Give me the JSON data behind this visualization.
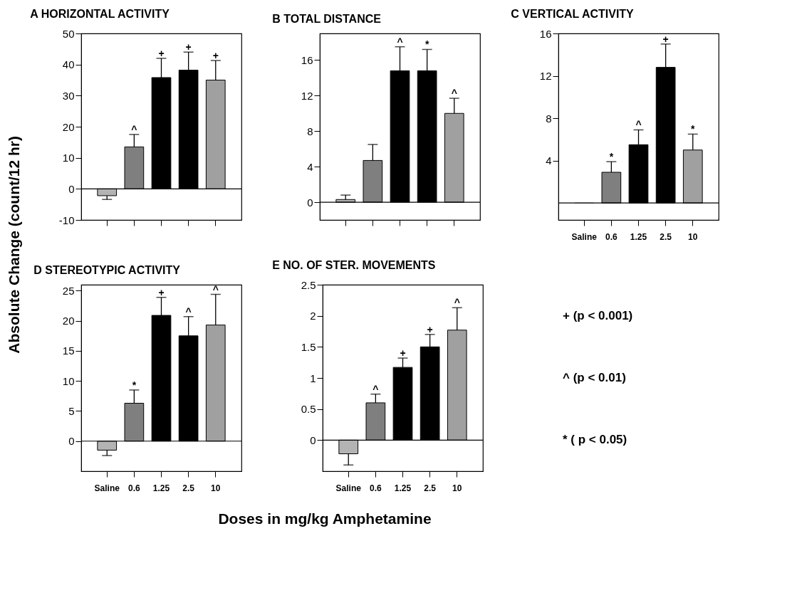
{
  "chart_data": [
    {
      "type": "bar",
      "title": "A  HORIZONTAL ACTIVITY",
      "categories": [
        null,
        null,
        null,
        null,
        null
      ],
      "values": [
        -2.2,
        13.5,
        35.8,
        38.2,
        35
      ],
      "errors": [
        [
          -3.4,
          -2.2
        ],
        [
          13.5,
          17.5
        ],
        [
          35.8,
          42
        ],
        [
          38.2,
          44
        ],
        [
          35,
          41.3
        ]
      ],
      "value_labels": [
        null,
        "^",
        "+",
        "+",
        "+"
      ],
      "colors": [
        "#b3b3b3",
        "#7f7f7f",
        "#000000",
        "#000000",
        "#a0a0a0"
      ],
      "ylim": [
        -10,
        50
      ],
      "yticks": [
        -10,
        0,
        10,
        20,
        30,
        40,
        50
      ],
      "tick_labels": "y",
      "ref_lines": [
        {
          "axis": "y",
          "value": 0,
          "color": "#000000"
        }
      ]
    },
    {
      "type": "bar",
      "title": "B  TOTAL DISTANCE",
      "categories": [
        null,
        null,
        null,
        null,
        null
      ],
      "values": [
        0.3,
        4.7,
        14.8,
        14.8,
        10
      ],
      "errors": [
        [
          0.3,
          0.8
        ],
        [
          4.7,
          6.5
        ],
        [
          14.8,
          17.5
        ],
        [
          14.8,
          17.2
        ],
        [
          10,
          11.7
        ]
      ],
      "value_labels": [
        null,
        null,
        "^",
        "*",
        "^"
      ],
      "colors": [
        "#b3b3b3",
        "#7f7f7f",
        "#000000",
        "#000000",
        "#a0a0a0"
      ],
      "ylim": [
        -2,
        19
      ],
      "yticks": [
        0,
        4,
        8,
        12,
        16
      ],
      "tick_labels": "y",
      "ref_lines": [
        {
          "axis": "y",
          "value": 0,
          "color": "#000000"
        }
      ]
    },
    {
      "type": "bar",
      "title": "C  VERTICAL ACTIVITY",
      "categories": [
        "Saline",
        "0.6",
        "1.25",
        "2.5",
        "10"
      ],
      "values": [
        0,
        2.9,
        5.5,
        12.8,
        5
      ],
      "errors": [
        null,
        [
          2.9,
          3.9
        ],
        [
          5.5,
          6.9
        ],
        [
          12.8,
          15
        ],
        [
          5,
          6.5
        ]
      ],
      "value_labels": [
        null,
        "*",
        "^",
        "+",
        "*"
      ],
      "colors": [
        "#b3b3b3",
        "#7f7f7f",
        "#000000",
        "#000000",
        "#a0a0a0"
      ],
      "ylim": [
        -1.6,
        16
      ],
      "yticks": [
        4,
        8,
        12,
        16
      ],
      "ref_lines": [
        {
          "axis": "y",
          "value": 0,
          "color": "#000000"
        }
      ]
    },
    {
      "type": "bar",
      "title": "D  STEREOTYPIC ACTIVITY",
      "ylabel": "Absolute Change (count/12 hr)",
      "xlabel": "Doses in mg/kg Amphetamine",
      "categories": [
        "Saline",
        "0.6",
        "1.25",
        "2.5",
        "10"
      ],
      "values": [
        -1.5,
        6.3,
        20.9,
        17.5,
        19.3
      ],
      "errors": [
        [
          -2.4,
          -1.5
        ],
        [
          6.3,
          8.5
        ],
        [
          20.9,
          23.9
        ],
        [
          17.5,
          20.7
        ],
        [
          19.3,
          24.4
        ]
      ],
      "value_labels": [
        null,
        "*",
        "+",
        "^",
        "^"
      ],
      "colors": [
        "#b3b3b3",
        "#7f7f7f",
        "#000000",
        "#000000",
        "#a0a0a0"
      ],
      "ylim": [
        -5,
        26
      ],
      "yticks": [
        0,
        5,
        10,
        15,
        20,
        25
      ],
      "ref_lines": [
        {
          "axis": "y",
          "value": 0,
          "color": "#000000"
        }
      ]
    },
    {
      "type": "bar",
      "title": "E  NO. OF STER. MOVEMENTS",
      "categories": [
        "Saline",
        "0.6",
        "1.25",
        "2.5",
        "10"
      ],
      "values": [
        -0.22,
        0.6,
        1.17,
        1.5,
        1.77
      ],
      "errors": [
        [
          -0.4,
          -0.22
        ],
        [
          0.6,
          0.74
        ],
        [
          1.17,
          1.32
        ],
        [
          1.5,
          1.7
        ],
        [
          1.77,
          2.13
        ]
      ],
      "value_labels": [
        null,
        "^",
        "+",
        "+",
        "^"
      ],
      "colors": [
        "#b3b3b3",
        "#7f7f7f",
        "#000000",
        "#000000",
        "#a0a0a0"
      ],
      "ylim": [
        -0.5,
        2.5
      ],
      "yticks": [
        0,
        0.5,
        1,
        1.5,
        2,
        2.5
      ],
      "ref_lines": [
        {
          "axis": "y",
          "value": 0,
          "color": "#000000"
        }
      ]
    },
    {
      "type": "other",
      "annotations": [
        "+  (p < 0.001)",
        "^  (p < 0.01)",
        "*  ( p < 0.05)"
      ]
    }
  ]
}
